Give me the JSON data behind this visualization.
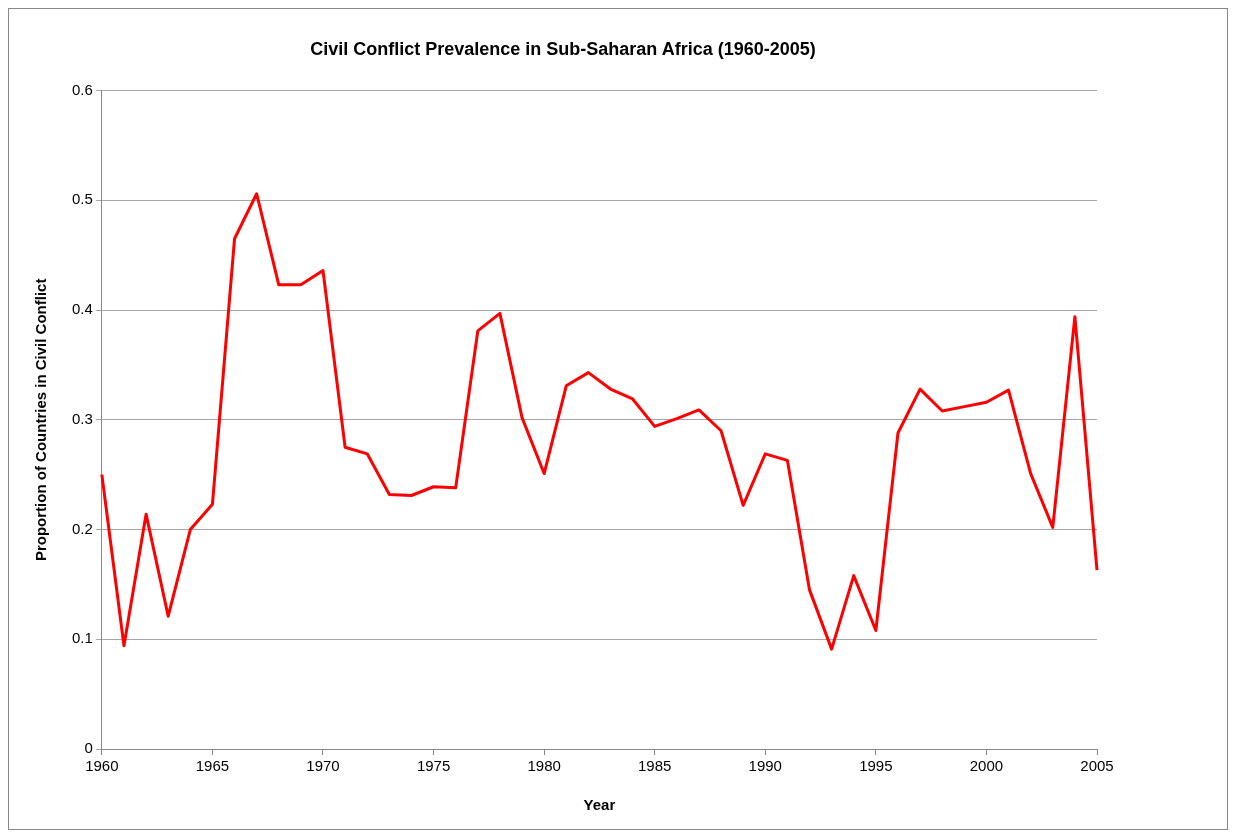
{
  "chart_data": {
    "type": "line",
    "title": "Civil Conflict Prevalence in Sub-Saharan Africa (1960-2005)",
    "xlabel": "Year",
    "ylabel": "Proportion of Countries in Civil Conflict",
    "x": [
      1960,
      1961,
      1962,
      1963,
      1964,
      1965,
      1966,
      1967,
      1968,
      1969,
      1970,
      1971,
      1972,
      1973,
      1974,
      1975,
      1976,
      1977,
      1978,
      1979,
      1980,
      1981,
      1982,
      1983,
      1984,
      1985,
      1986,
      1987,
      1988,
      1989,
      1990,
      1991,
      1992,
      1993,
      1994,
      1995,
      1996,
      1997,
      1998,
      1999,
      2000,
      2001,
      2002,
      2003,
      2004,
      2005
    ],
    "series": [
      {
        "color": "#ff0000",
        "values": [
          0.25,
          0.094,
          0.214,
          0.121,
          0.2,
          0.223,
          0.465,
          0.506,
          0.423,
          0.423,
          0.436,
          0.275,
          0.269,
          0.232,
          0.231,
          0.239,
          0.238,
          0.381,
          0.397,
          0.302,
          0.251,
          0.331,
          0.343,
          0.328,
          0.319,
          0.294,
          0.301,
          0.309,
          0.29,
          0.222,
          0.269,
          0.263,
          0.145,
          0.091,
          0.158,
          0.108,
          0.288,
          0.328,
          0.308,
          0.312,
          0.316,
          0.327,
          0.251,
          0.202,
          0.394,
          0.163
        ]
      }
    ],
    "xlim": [
      1960,
      2005
    ],
    "xticks": [
      1960,
      1965,
      1970,
      1975,
      1980,
      1985,
      1990,
      1995,
      2000,
      2005
    ],
    "ylim": [
      0,
      0.6
    ],
    "yticks": [
      0,
      0.1,
      0.2,
      0.3,
      0.4,
      0.5,
      0.6
    ],
    "grid": "y",
    "legend": false,
    "marker": "none",
    "line_style": "solid"
  }
}
